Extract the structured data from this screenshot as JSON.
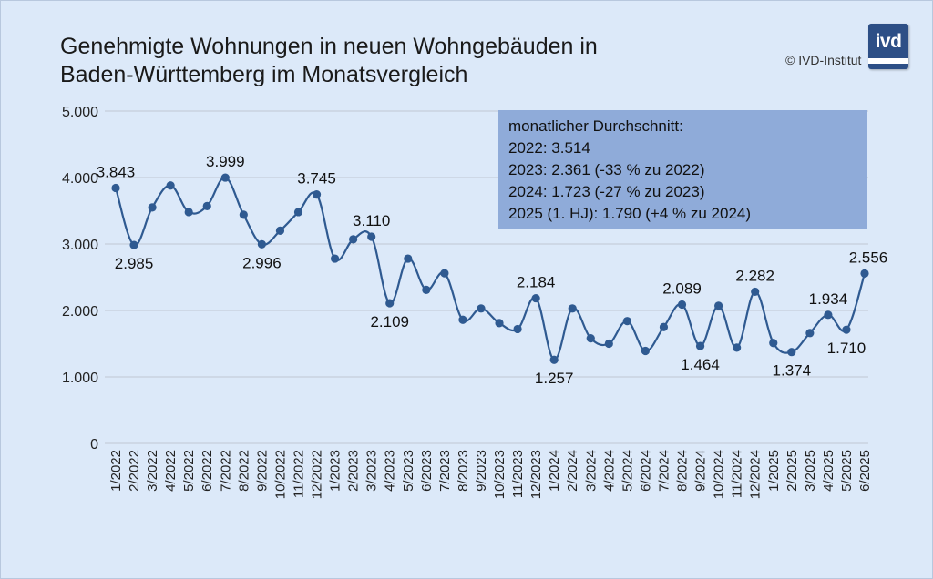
{
  "title_line1": "Genehmigte Wohnungen in neuen Wohngebäuden in",
  "title_line2": "Baden-Württemberg im Monatsvergleich",
  "copyright": "© IVD-Institut",
  "logo_text": "ivd",
  "infobox": {
    "line1": "monatlicher Durchschnitt:",
    "line2": "2022: 3.514",
    "line3": "2023: 2.361 (-33 % zu 2022)",
    "line4": "2024: 1.723 (-27 % zu 2023)",
    "line5": "2025 (1. HJ): 1.790 (+4 % zu 2024)"
  },
  "colors": {
    "line": "#2f5a91",
    "marker": "#2f5a91",
    "gridline": "#c0c8d4",
    "background": "#dce9f9",
    "infobox": "#8fabd9"
  },
  "chart_data": {
    "type": "line",
    "title": "Genehmigte Wohnungen in neuen Wohngebäuden in Baden-Württemberg im Monatsvergleich",
    "ylim": [
      0,
      5000
    ],
    "yticks": [
      0,
      1000,
      2000,
      3000,
      4000,
      5000
    ],
    "ytick_labels": [
      "0",
      "1.000",
      "2.000",
      "3.000",
      "4.000",
      "5.000"
    ],
    "grid": true,
    "categories": [
      "1/2022",
      "2/2022",
      "3/2022",
      "4/2022",
      "5/2022",
      "6/2022",
      "7/2022",
      "8/2022",
      "9/2022",
      "10/2022",
      "11/2022",
      "12/2022",
      "1/2023",
      "2/2023",
      "3/2023",
      "4/2023",
      "5/2023",
      "6/2023",
      "7/2023",
      "8/2023",
      "9/2023",
      "10/2023",
      "11/2023",
      "12/2023",
      "1/2024",
      "2/2024",
      "3/2024",
      "4/2024",
      "5/2024",
      "6/2024",
      "7/2024",
      "8/2024",
      "9/2024",
      "10/2024",
      "11/2024",
      "12/2024",
      "1/2025",
      "2/2025",
      "3/2025",
      "4/2025",
      "5/2025",
      "6/2025"
    ],
    "values": [
      3843,
      2985,
      3550,
      3880,
      3480,
      3570,
      3999,
      3440,
      2996,
      3200,
      3480,
      3745,
      2780,
      3070,
      3110,
      2109,
      2780,
      2310,
      2560,
      1860,
      2030,
      1810,
      1720,
      2184,
      1257,
      2030,
      1580,
      1500,
      1840,
      1390,
      1750,
      2089,
      1464,
      2070,
      1440,
      2282,
      1510,
      1374,
      1660,
      1934,
      1710,
      2556
    ],
    "data_labels": [
      {
        "index": 0,
        "text": "3.843",
        "pos": "above"
      },
      {
        "index": 1,
        "text": "2.985",
        "pos": "below"
      },
      {
        "index": 6,
        "text": "3.999",
        "pos": "above"
      },
      {
        "index": 8,
        "text": "2.996",
        "pos": "below"
      },
      {
        "index": 11,
        "text": "3.745",
        "pos": "above"
      },
      {
        "index": 14,
        "text": "3.110",
        "pos": "above"
      },
      {
        "index": 15,
        "text": "2.109",
        "pos": "below"
      },
      {
        "index": 23,
        "text": "2.184",
        "pos": "above"
      },
      {
        "index": 24,
        "text": "1.257",
        "pos": "below"
      },
      {
        "index": 31,
        "text": "2.089",
        "pos": "above"
      },
      {
        "index": 32,
        "text": "1.464",
        "pos": "below"
      },
      {
        "index": 35,
        "text": "2.282",
        "pos": "above"
      },
      {
        "index": 37,
        "text": "1.374",
        "pos": "below"
      },
      {
        "index": 39,
        "text": "1.934",
        "pos": "above"
      },
      {
        "index": 40,
        "text": "1.710",
        "pos": "below"
      },
      {
        "index": 41,
        "text": "2.556",
        "pos": "above"
      }
    ]
  }
}
